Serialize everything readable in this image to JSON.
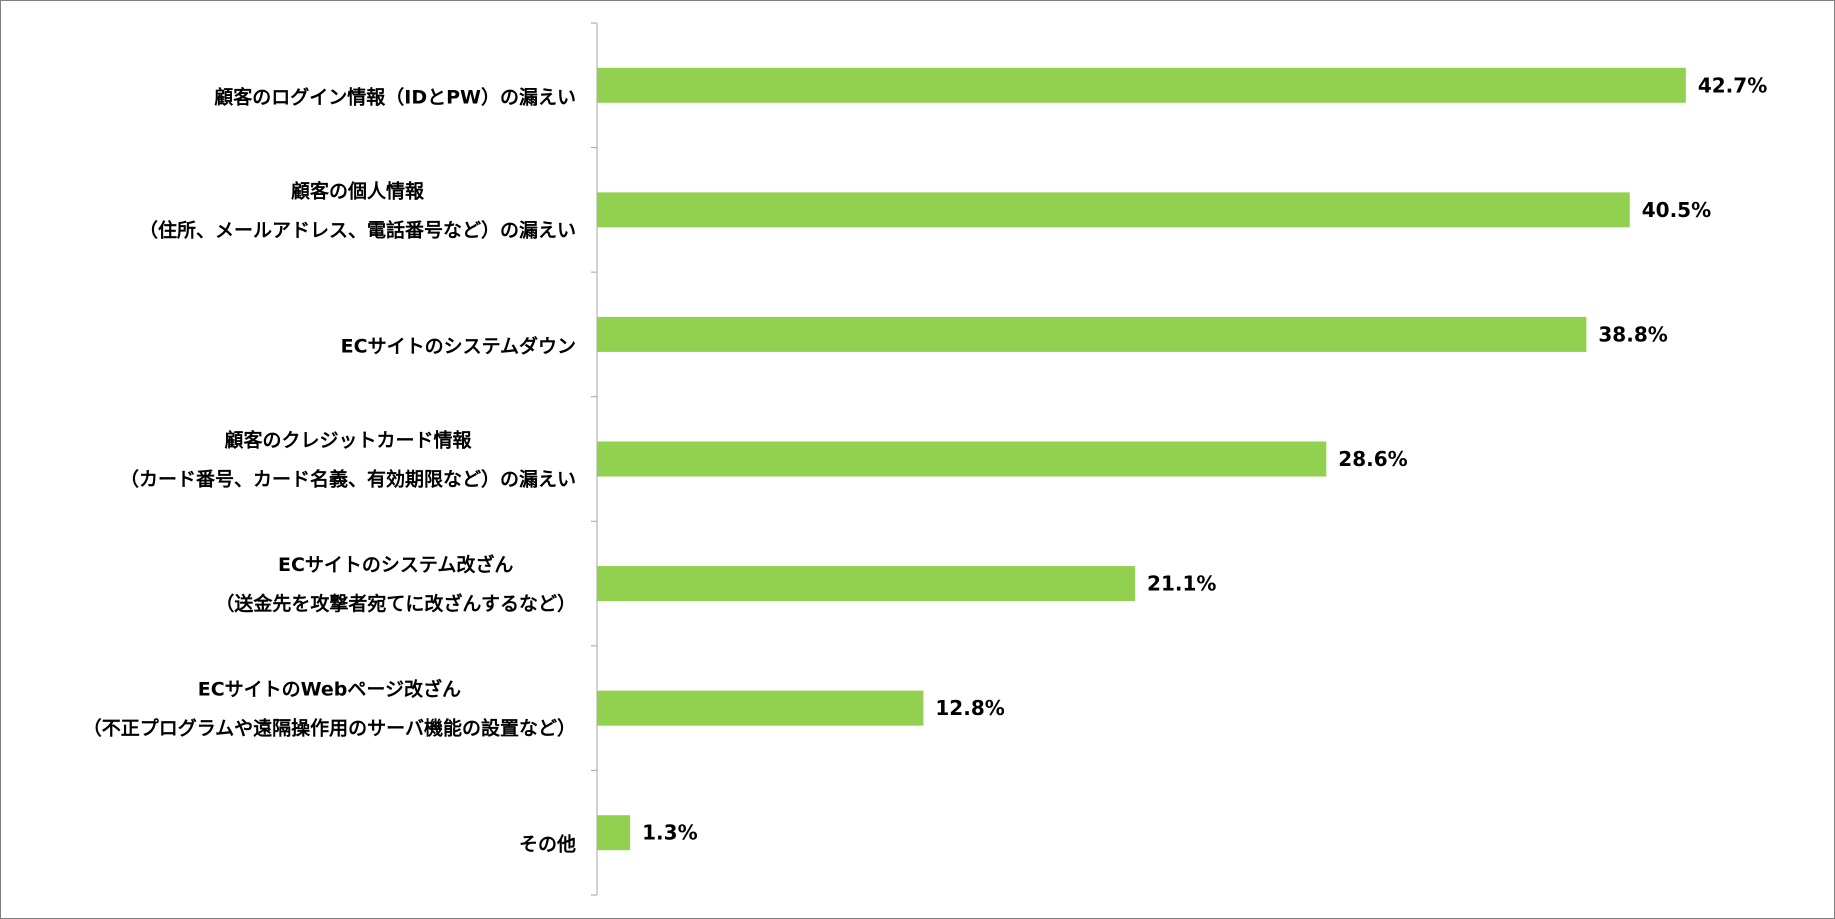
{
  "chart_data": {
    "type": "bar",
    "orientation": "horizontal",
    "categories": [
      [
        "顧客のログイン情報（IDとPW）の漏えい"
      ],
      [
        "顧客の個人情報",
        "（住所、メールアドレス、電話番号など）の漏えい"
      ],
      [
        "ECサイトのシステムダウン"
      ],
      [
        "顧客のクレジットカード情報",
        "（カード番号、カード名義、有効期限など）の漏えい"
      ],
      [
        "ECサイトのシステム改ざん",
        "（送金先を攻撃者宛てに改ざんするなど）"
      ],
      [
        "ECサイトのWebページ改ざん",
        "（不正プログラムや遠隔操作用のサーバ機能の設置など）"
      ],
      [
        "その他"
      ]
    ],
    "values": [
      42.7,
      40.5,
      38.8,
      28.6,
      21.1,
      12.8,
      1.3
    ],
    "value_labels": [
      "42.7%",
      "40.5%",
      "38.8%",
      "28.6%",
      "21.1%",
      "12.8%",
      "1.3%"
    ],
    "xlim": [
      0,
      50
    ],
    "grid": false,
    "legend": "none",
    "bar_color": "#92d050",
    "axis_color": "#a6a6a6",
    "border_color": "#7f7f7f"
  }
}
